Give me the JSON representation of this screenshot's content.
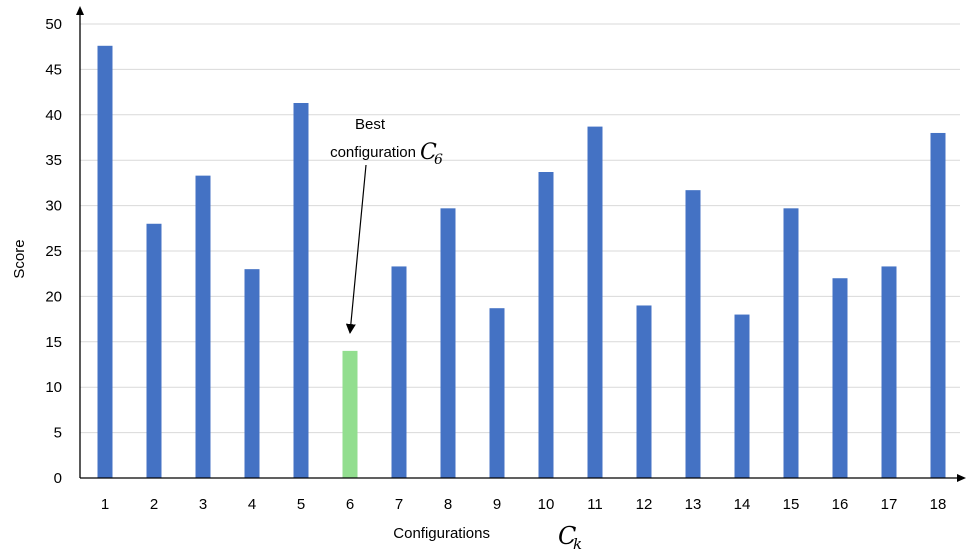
{
  "chart_data": {
    "type": "bar",
    "title": "",
    "xlabel": "Configurations",
    "xlabel_math": "C",
    "xlabel_math_sub": "k",
    "ylabel": "Score",
    "ylim": [
      0,
      50
    ],
    "yticks": [
      0,
      5,
      10,
      15,
      20,
      25,
      30,
      35,
      40,
      45,
      50
    ],
    "grid": "horizontal",
    "categories": [
      "1",
      "2",
      "3",
      "4",
      "5",
      "6",
      "7",
      "8",
      "9",
      "10",
      "11",
      "12",
      "13",
      "14",
      "15",
      "16",
      "17",
      "18"
    ],
    "values": [
      47.6,
      28.0,
      33.3,
      23.0,
      41.3,
      14.0,
      23.3,
      29.7,
      18.7,
      33.7,
      38.7,
      19.0,
      31.7,
      18.0,
      29.7,
      22.0,
      23.3,
      38.0
    ],
    "bar_color": "#4472C4",
    "highlight_color": "#92DE8F",
    "highlight_index": 5,
    "annotation": {
      "line1": "Best",
      "line2": "configuration",
      "math": "C",
      "math_sub": "6"
    }
  }
}
